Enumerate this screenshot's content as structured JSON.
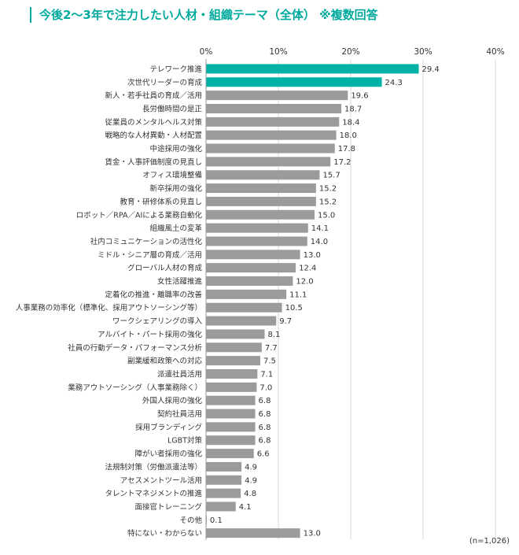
{
  "title": "今後2～3年で注力したい人材・組織テーマ（全体） ※複数回答",
  "note": "(n=1,026)",
  "colors": {
    "accent": "#00B2A5",
    "bar": "#9B9B9B",
    "title": "#00A99D"
  },
  "chart_data": {
    "type": "bar",
    "orientation": "horizontal",
    "xlim": [
      0,
      40
    ],
    "x_ticks": [
      "0%",
      "10%",
      "20%",
      "30%",
      "40%"
    ],
    "grid": true,
    "categories": [
      "テレワーク推進",
      "次世代リーダーの育成",
      "新人・若手社員の育成／活用",
      "長労働時間の是正",
      "従業員のメンタルヘルス対策",
      "戦略的な人材異動・人材配置",
      "中途採用の強化",
      "賃金・人事評価制度の見直し",
      "オフィス環境整備",
      "新卒採用の強化",
      "教育・研修体系の見直し",
      "ロボット／RPA／AIによる業務自動化",
      "組織風土の変革",
      "社内コミュニケーションの活性化",
      "ミドル・シニア層の育成／活用",
      "グローバル人材の育成",
      "女性活躍推進",
      "定着化の推進・離職率の改善",
      "人事業務の効率化（標準化、採用アウトソーシング等）",
      "ワークシェアリングの導入",
      "アルバイト・パート採用の強化",
      "社員の行動データ・パフォーマンス分析",
      "副業緩和政策への対応",
      "派遣社員活用",
      "業務アウトソーシング（人事業務除く）",
      "外国人採用の強化",
      "契約社員活用",
      "採用ブランディング",
      "LGBT対策",
      "障がい者採用の強化",
      "法規制対策（労働派遣法等）",
      "アセスメントツール活用",
      "タレントマネジメントの推進",
      "面接官トレーニング",
      "その他",
      "特にない・わからない"
    ],
    "values": [
      29.4,
      24.3,
      19.6,
      18.7,
      18.4,
      18.0,
      17.8,
      17.2,
      15.7,
      15.2,
      15.2,
      15.0,
      14.1,
      14.0,
      13.0,
      12.4,
      12.0,
      11.1,
      10.5,
      9.7,
      8.1,
      7.7,
      7.5,
      7.1,
      7.0,
      6.8,
      6.8,
      6.8,
      6.8,
      6.6,
      4.9,
      4.9,
      4.8,
      4.1,
      0.1,
      13.0
    ],
    "value_labels": [
      "29.4",
      "24.3",
      "19.6",
      "18.7",
      "18.4",
      "18.0",
      "17.8",
      "17.2",
      "15.7",
      "15.2",
      "15.2",
      "15.0",
      "14.1",
      "14.0",
      "13.0",
      "12.4",
      "12.0",
      "11.1",
      "10.5",
      "9.7",
      "8.1",
      "7.7",
      "7.5",
      "7.1",
      "7.0",
      "6.8",
      "6.8",
      "6.8",
      "6.8",
      "6.6",
      "4.9",
      "4.9",
      "4.8",
      "4.1",
      "0.1",
      "13.0"
    ],
    "highlighted": [
      0,
      1
    ]
  }
}
